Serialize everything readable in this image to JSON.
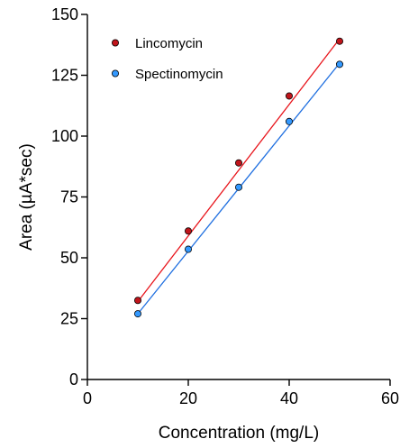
{
  "chart_data": {
    "type": "scatter",
    "xlabel": "Concentration (mg/L)",
    "ylabel": "Area (µA*sec)",
    "xlim": [
      0,
      60
    ],
    "ylim": [
      0,
      150
    ],
    "xticks": [
      0,
      20,
      40,
      60
    ],
    "yticks": [
      0,
      25,
      50,
      75,
      100,
      125,
      150
    ],
    "grid": false,
    "legend_position": "top-left",
    "series": [
      {
        "name": "Lincomycin",
        "color": "#e8141b",
        "marker_fill": "#c0151b",
        "x": [
          10,
          20,
          30,
          40,
          50
        ],
        "y": [
          32.5,
          61,
          89,
          116.5,
          139
        ],
        "fit": {
          "x_start": 10,
          "y_start": 32,
          "x_end": 50,
          "y_end": 140
        }
      },
      {
        "name": "Spectinomycin",
        "color": "#1f6fe0",
        "marker_fill": "#3399ff",
        "x": [
          10,
          20,
          30,
          40,
          50
        ],
        "y": [
          27,
          53.5,
          79,
          106,
          129.5
        ],
        "fit": {
          "x_start": 10,
          "y_start": 27,
          "x_end": 50,
          "y_end": 130
        }
      }
    ]
  }
}
